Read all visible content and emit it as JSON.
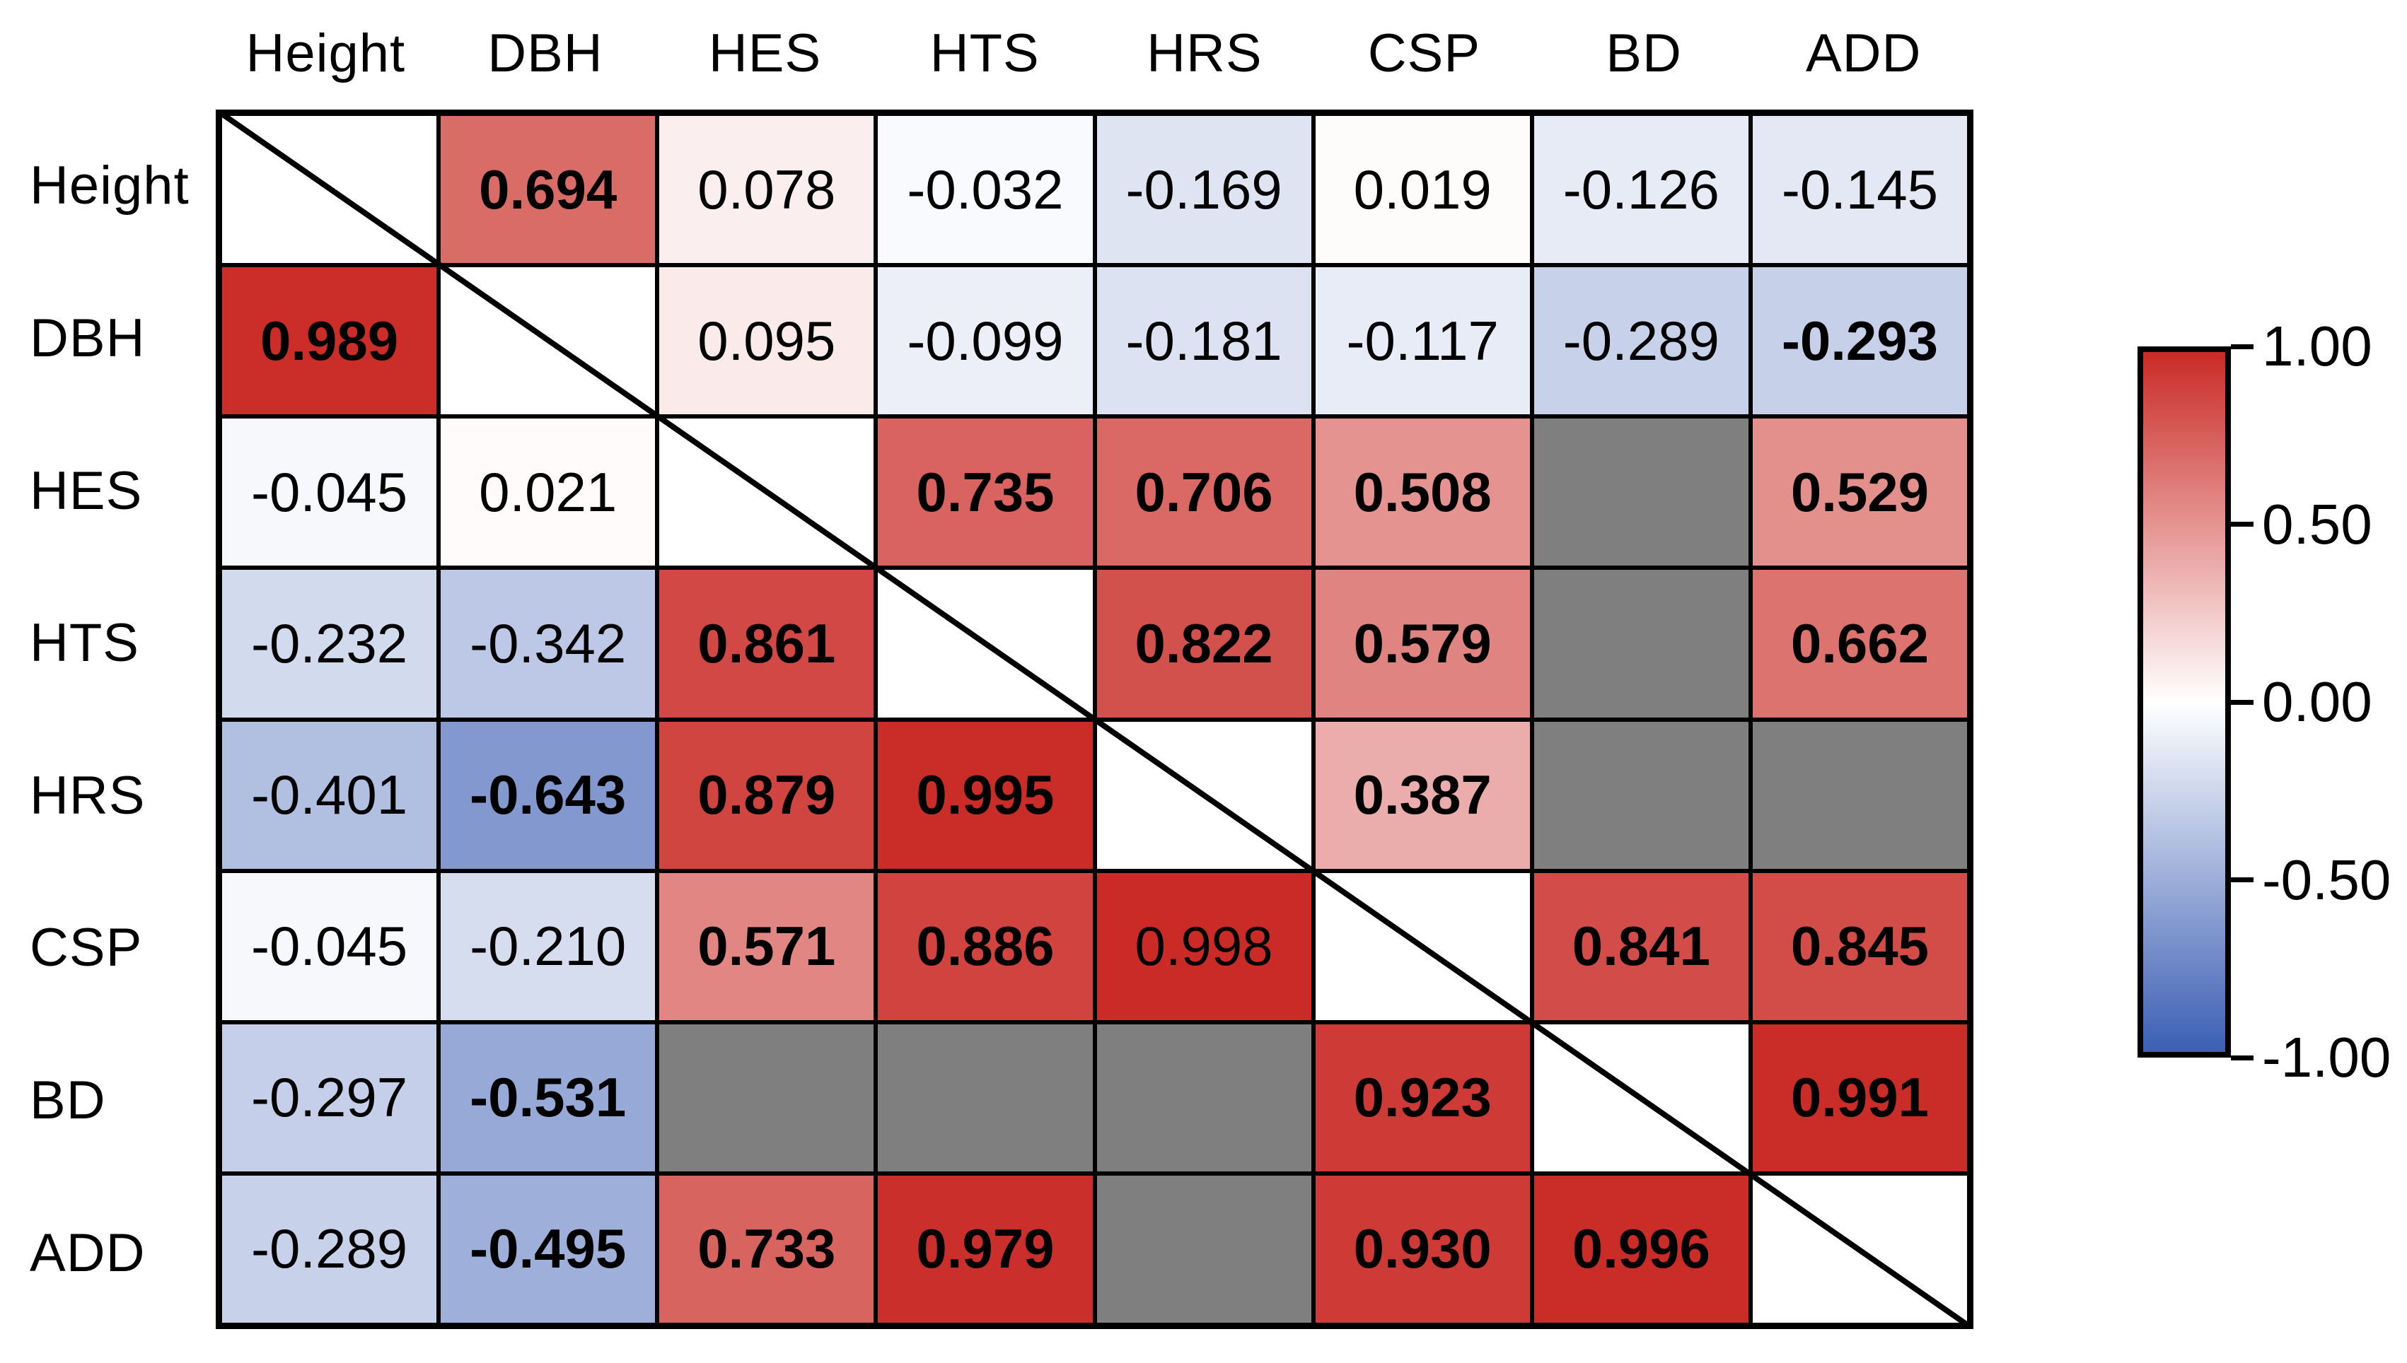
{
  "figure": {
    "description": "Correlation matrix heatmap with significance shown in bold, gray cells for unavailable pairs, and a blank diagonal crossed by a line"
  },
  "chart_data": {
    "type": "heatmap",
    "title": "",
    "xlabel": "",
    "ylabel": "",
    "variables": [
      "Height",
      "DBH",
      "HES",
      "HTS",
      "HRS",
      "CSP",
      "BD",
      "ADD"
    ],
    "matrix": [
      [
        null,
        {
          "v": "0.694",
          "bold": true
        },
        {
          "v": "0.078",
          "bold": false
        },
        {
          "v": "-0.032",
          "bold": false
        },
        {
          "v": "-0.169",
          "bold": false
        },
        {
          "v": "0.019",
          "bold": false
        },
        {
          "v": "-0.126",
          "bold": false
        },
        {
          "v": "-0.145",
          "bold": false
        }
      ],
      [
        {
          "v": "0.989",
          "bold": true
        },
        null,
        {
          "v": "0.095",
          "bold": false
        },
        {
          "v": "-0.099",
          "bold": false
        },
        {
          "v": "-0.181",
          "bold": false
        },
        {
          "v": "-0.117",
          "bold": false
        },
        {
          "v": "-0.289",
          "bold": false
        },
        {
          "v": "-0.293",
          "bold": true
        }
      ],
      [
        {
          "v": "-0.045",
          "bold": false
        },
        {
          "v": "0.021",
          "bold": false
        },
        null,
        {
          "v": "0.735",
          "bold": true
        },
        {
          "v": "0.706",
          "bold": true
        },
        {
          "v": "0.508",
          "bold": true
        },
        {
          "na": true
        },
        {
          "v": "0.529",
          "bold": true
        }
      ],
      [
        {
          "v": "-0.232",
          "bold": false
        },
        {
          "v": "-0.342",
          "bold": false
        },
        {
          "v": "0.861",
          "bold": true
        },
        null,
        {
          "v": "0.822",
          "bold": true
        },
        {
          "v": "0.579",
          "bold": true
        },
        {
          "na": true
        },
        {
          "v": "0.662",
          "bold": true
        }
      ],
      [
        {
          "v": "-0.401",
          "bold": false
        },
        {
          "v": "-0.643",
          "bold": true
        },
        {
          "v": "0.879",
          "bold": true
        },
        {
          "v": "0.995",
          "bold": true
        },
        null,
        {
          "v": "0.387",
          "bold": true
        },
        {
          "na": true
        },
        {
          "na": true
        }
      ],
      [
        {
          "v": "-0.045",
          "bold": false
        },
        {
          "v": "-0.210",
          "bold": false
        },
        {
          "v": "0.571",
          "bold": true
        },
        {
          "v": "0.886",
          "bold": true
        },
        {
          "v": "0.998",
          "bold": false
        },
        null,
        {
          "v": "0.841",
          "bold": true
        },
        {
          "v": "0.845",
          "bold": true
        }
      ],
      [
        {
          "v": "-0.297",
          "bold": false
        },
        {
          "v": "-0.531",
          "bold": true
        },
        {
          "na": true
        },
        {
          "na": true
        },
        {
          "na": true
        },
        {
          "v": "0.923",
          "bold": true
        },
        null,
        {
          "v": "0.991",
          "bold": true
        }
      ],
      [
        {
          "v": "-0.289",
          "bold": false
        },
        {
          "v": "-0.495",
          "bold": true
        },
        {
          "v": "0.733",
          "bold": true
        },
        {
          "v": "0.979",
          "bold": true
        },
        {
          "na": true
        },
        {
          "v": "0.930",
          "bold": true
        },
        {
          "v": "0.996",
          "bold": true
        },
        null
      ]
    ],
    "colorbar": {
      "tick_labels": [
        "1.00",
        "0.50",
        "0.00",
        "-0.50",
        "-1.00"
      ],
      "tick_values": [
        1.0,
        0.5,
        0.0,
        -0.5,
        -1.0
      ],
      "max_color": "#CA2B26",
      "mid_color": "#FFFFFF",
      "min_color": "#3C5FB4",
      "na_color": "#7F7F7F",
      "diagonal_color": "#FFFFFF",
      "range": [
        -1.0,
        1.0
      ]
    }
  }
}
